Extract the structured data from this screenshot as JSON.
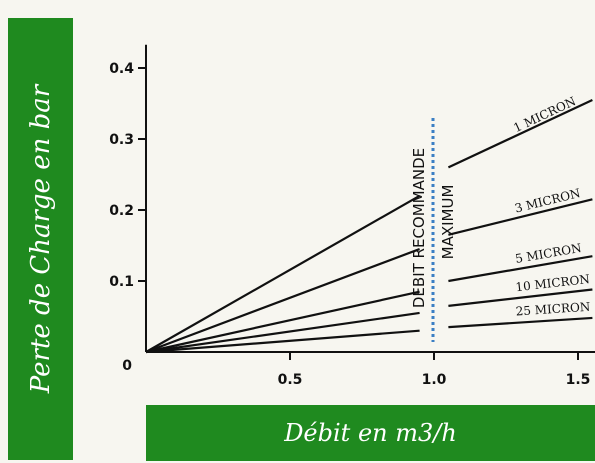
{
  "chart_data": {
    "type": "line",
    "ylabel": "Perte de Charge en bar",
    "xlabel": "Débit en m3/h",
    "xlim": [
      0,
      1.55
    ],
    "ylim": [
      0,
      0.43
    ],
    "xticks": [
      0,
      0.5,
      1.0,
      1.5
    ],
    "xtick_labels": [
      "0",
      "0.5",
      "1.0",
      "1.5"
    ],
    "yticks": [
      0.1,
      0.2,
      0.3,
      0.4
    ],
    "ytick_labels": [
      "0.1",
      "0.2",
      "0.3",
      "0.4"
    ],
    "annotations": [
      "DEBIT RECOMMANDE",
      "MAXIMUM"
    ],
    "annotation_x": 1.0,
    "series": [
      {
        "name": "1 MICRON",
        "x": [
          0,
          0.95,
          1.05,
          1.55
        ],
        "y": [
          0,
          0.22,
          0.26,
          0.355
        ]
      },
      {
        "name": "3 MICRON",
        "x": [
          0,
          0.95,
          1.05,
          1.55
        ],
        "y": [
          0,
          0.145,
          0.165,
          0.215
        ]
      },
      {
        "name": "5 MICRON",
        "x": [
          0,
          0.95,
          1.05,
          1.55
        ],
        "y": [
          0,
          0.085,
          0.1,
          0.135
        ]
      },
      {
        "name": "10 MICRON",
        "x": [
          0,
          0.95,
          1.05,
          1.55
        ],
        "y": [
          0,
          0.055,
          0.065,
          0.088
        ]
      },
      {
        "name": "25 MICRON",
        "x": [
          0,
          0.95,
          1.05,
          1.55
        ],
        "y": [
          0,
          0.03,
          0.035,
          0.048
        ]
      }
    ]
  }
}
